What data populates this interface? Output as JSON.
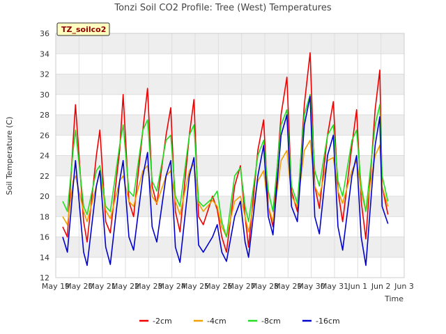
{
  "chart_data": {
    "type": "line",
    "title": "Tonzi Soil CO2 Profile: Tree (West) Temperatures",
    "xlabel": "Time",
    "ylabel": "Soil Temperature (C)",
    "badge": "TZ_soilco2",
    "ylim": [
      12,
      36
    ],
    "yticks": [
      12,
      14,
      16,
      18,
      20,
      22,
      24,
      26,
      28,
      30,
      32,
      34,
      36
    ],
    "xlim": [
      19,
      34
    ],
    "xticks": [
      {
        "x": 19,
        "label": "May 19"
      },
      {
        "x": 20,
        "label": "May 20"
      },
      {
        "x": 21,
        "label": "May 21"
      },
      {
        "x": 22,
        "label": "May 22"
      },
      {
        "x": 23,
        "label": "May 23"
      },
      {
        "x": 24,
        "label": "May 24"
      },
      {
        "x": 25,
        "label": "May 25"
      },
      {
        "x": 26,
        "label": "May 26"
      },
      {
        "x": 27,
        "label": "May 27"
      },
      {
        "x": 28,
        "label": "May 28"
      },
      {
        "x": 29,
        "label": "May 29"
      },
      {
        "x": 30,
        "label": "May 30"
      },
      {
        "x": 31,
        "label": "May 31"
      },
      {
        "x": 32,
        "label": "Jun 1"
      },
      {
        "x": 33,
        "label": "Jun 2"
      },
      {
        "x": 34,
        "label": "Jun 3"
      }
    ],
    "grid": true,
    "legend_position": "bottom",
    "series": [
      {
        "name": "-2cm",
        "color": "#ee0000",
        "x": [
          19.3,
          19.5,
          19.75,
          19.85,
          20.2,
          20.35,
          20.75,
          20.9,
          21.15,
          21.35,
          21.75,
          21.9,
          22.15,
          22.35,
          22.75,
          22.95,
          23.15,
          23.35,
          23.75,
          23.95,
          24.15,
          24.35,
          24.75,
          24.95,
          25.15,
          25.35,
          25.75,
          25.95,
          26.15,
          26.35,
          26.7,
          26.95,
          27.15,
          27.3,
          27.7,
          27.95,
          28.15,
          28.35,
          28.7,
          28.95,
          29.15,
          29.4,
          29.7,
          29.95,
          30.15,
          30.35,
          30.7,
          30.95,
          31.15,
          31.35,
          31.75,
          31.95,
          32.15,
          32.35,
          32.75,
          32.95,
          33.05,
          33.3
        ],
        "y": [
          17,
          16,
          25.5,
          29,
          17.5,
          15.5,
          24,
          26.5,
          17.5,
          16.4,
          24.5,
          30,
          19.5,
          18,
          26.5,
          30.6,
          21,
          19.2,
          26,
          28.7,
          18.5,
          16.5,
          26,
          29.5,
          18,
          17.2,
          20,
          18.7,
          16,
          14.5,
          21,
          23,
          18,
          15,
          24.5,
          27.5,
          19,
          17,
          28,
          31.7,
          20.5,
          18.5,
          29,
          34.1,
          21,
          18.8,
          26,
          29.3,
          20.5,
          17.5,
          25,
          28.5,
          19.5,
          15.8,
          28.5,
          32.4,
          21,
          18.2
        ]
      },
      {
        "name": "-4cm",
        "color": "#f0a000",
        "x": [
          19.3,
          19.5,
          19.75,
          19.85,
          20.2,
          20.35,
          20.75,
          20.9,
          21.15,
          21.35,
          21.75,
          21.9,
          22.15,
          22.35,
          22.75,
          22.95,
          23.15,
          23.35,
          23.75,
          23.95,
          24.15,
          24.35,
          24.75,
          24.95,
          25.15,
          25.35,
          25.75,
          25.95,
          26.15,
          26.35,
          26.7,
          26.95,
          27.15,
          27.3,
          27.7,
          27.95,
          28.15,
          28.35,
          28.7,
          28.95,
          29.15,
          29.4,
          29.7,
          29.95,
          30.15,
          30.35,
          30.7,
          30.95,
          31.15,
          31.35,
          31.75,
          31.95,
          32.15,
          32.35,
          32.75,
          32.95,
          33.05,
          33.3
        ],
        "y": [
          18,
          17.2,
          21.5,
          22,
          18.5,
          17.5,
          21,
          22.5,
          18.6,
          17.8,
          21.5,
          22,
          19.5,
          19,
          22.5,
          23,
          20,
          19.3,
          22,
          22.5,
          19.5,
          18.2,
          22.5,
          23.2,
          19.3,
          18.5,
          19.6,
          19,
          17,
          16,
          19.5,
          20,
          18,
          16.5,
          21.5,
          22.5,
          19,
          17.5,
          23.5,
          24.5,
          20,
          19,
          24.5,
          25.5,
          21,
          20,
          23.5,
          23.8,
          20.5,
          19.3,
          22.5,
          23.5,
          20.5,
          18.5,
          24,
          25,
          21,
          19
        ]
      },
      {
        "name": "-8cm",
        "color": "#22dd22",
        "x": [
          19.3,
          19.5,
          19.75,
          19.85,
          20.2,
          20.35,
          20.75,
          20.9,
          21.15,
          21.35,
          21.75,
          21.9,
          22.15,
          22.35,
          22.75,
          22.95,
          23.15,
          23.35,
          23.75,
          23.95,
          24.15,
          24.35,
          24.75,
          24.95,
          25.15,
          25.35,
          25.75,
          25.95,
          26.15,
          26.35,
          26.7,
          26.95,
          27.15,
          27.3,
          27.7,
          27.95,
          28.15,
          28.35,
          28.7,
          28.95,
          29.15,
          29.4,
          29.7,
          29.95,
          30.15,
          30.35,
          30.7,
          30.95,
          31.15,
          31.35,
          31.75,
          31.95,
          32.15,
          32.35,
          32.75,
          32.95,
          33.05,
          33.3
        ],
        "y": [
          19.5,
          18.5,
          24.5,
          26.5,
          19,
          18.2,
          22.5,
          23,
          19,
          18.5,
          25,
          27,
          20.5,
          20,
          26.5,
          27.5,
          21.5,
          20.5,
          25.5,
          26,
          20,
          19,
          26,
          27,
          19.5,
          19,
          19.8,
          20.5,
          17.5,
          16,
          22,
          22.8,
          19,
          17.5,
          24,
          25.5,
          20.5,
          18.5,
          27,
          28.5,
          21,
          19.3,
          28,
          30,
          22.5,
          21,
          26,
          27,
          21.5,
          20,
          25.5,
          26.5,
          21,
          18.5,
          27,
          29,
          22,
          19.5
        ]
      },
      {
        "name": "-16cm",
        "color": "#0000cc",
        "x": [
          19.3,
          19.5,
          19.75,
          19.85,
          20.2,
          20.35,
          20.75,
          20.9,
          21.15,
          21.35,
          21.75,
          21.9,
          22.15,
          22.35,
          22.75,
          22.95,
          23.15,
          23.35,
          23.75,
          23.95,
          24.15,
          24.35,
          24.75,
          24.95,
          25.15,
          25.35,
          25.75,
          25.95,
          26.15,
          26.35,
          26.7,
          26.95,
          27.15,
          27.3,
          27.7,
          27.95,
          28.15,
          28.35,
          28.7,
          28.95,
          29.15,
          29.4,
          29.7,
          29.95,
          30.15,
          30.35,
          30.7,
          30.95,
          31.15,
          31.35,
          31.75,
          31.95,
          32.15,
          32.35,
          32.75,
          32.95,
          33.05,
          33.3
        ],
        "y": [
          16,
          14.5,
          21,
          23.5,
          14.5,
          13.2,
          21,
          22.5,
          15,
          13.3,
          21.5,
          23.5,
          16,
          14.7,
          22,
          24.3,
          17,
          15.5,
          22,
          23.5,
          15,
          13.5,
          22,
          23.8,
          15.2,
          14.5,
          16,
          17.2,
          14.5,
          13.6,
          18,
          19.5,
          15.5,
          14,
          22,
          25,
          18,
          16.2,
          26,
          28,
          19,
          17.5,
          27,
          29.8,
          18,
          16.3,
          24,
          26,
          17,
          14.7,
          22,
          24,
          16,
          13.2,
          25,
          27.8,
          19,
          17.3
        ]
      }
    ]
  }
}
